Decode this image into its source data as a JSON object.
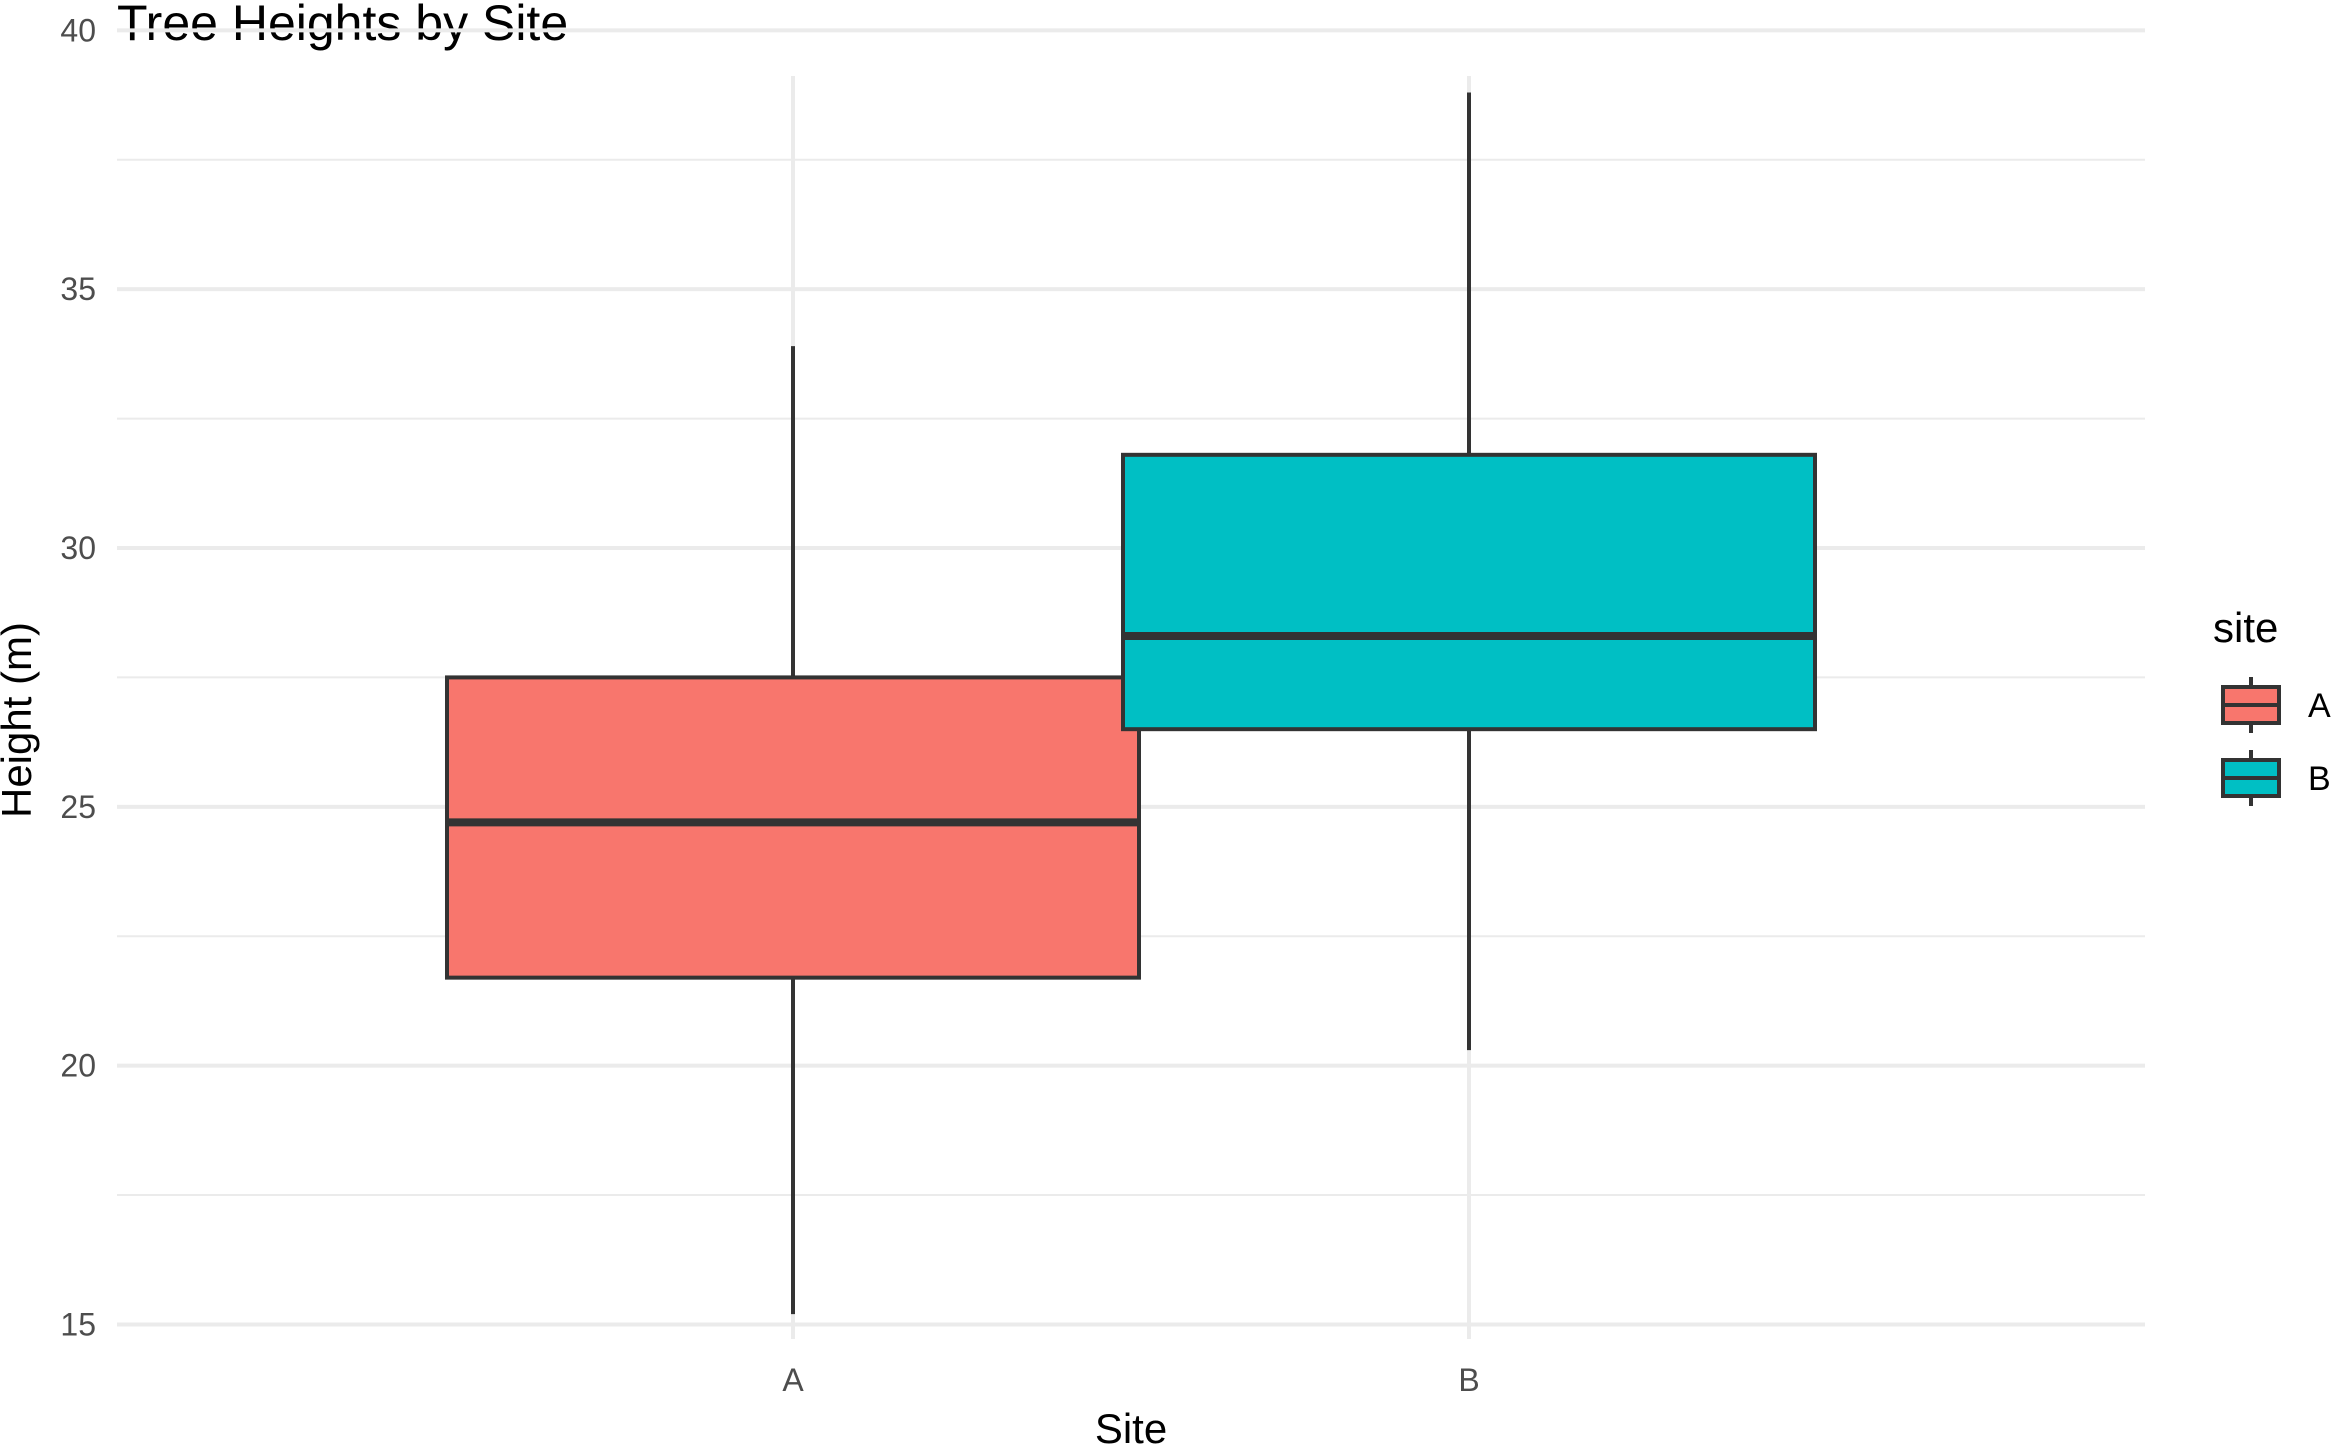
{
  "chart_data": {
    "type": "boxplot",
    "title": "Tree Heights by Site",
    "xlabel": "Site",
    "ylabel": "Height (m)",
    "ylim": [
      14.7,
      40.2
    ],
    "yticks": [
      15,
      20,
      25,
      30,
      35,
      40
    ],
    "grid": true,
    "categories": [
      "A",
      "B"
    ],
    "boxes": [
      {
        "category": "A",
        "whisker_low": 15.2,
        "q1": 21.7,
        "median": 24.7,
        "q3": 27.5,
        "whisker_high": 33.9,
        "color": "#F8766D"
      },
      {
        "category": "B",
        "whisker_low": 20.3,
        "q1": 26.5,
        "median": 28.3,
        "q3": 31.8,
        "whisker_high": 38.8,
        "color": "#00BFC4"
      }
    ],
    "legend": {
      "title": "site",
      "placement": "right",
      "items": [
        {
          "label": "A",
          "color": "#F8766D"
        },
        {
          "label": "B",
          "color": "#00BFC4"
        }
      ]
    }
  }
}
